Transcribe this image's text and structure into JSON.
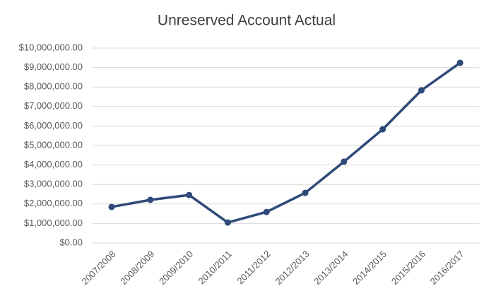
{
  "chart_data": {
    "type": "line",
    "title": "Unreserved Account Actual",
    "categories": [
      "2007/2008",
      "2008/2009",
      "2009/2010",
      "2010/2011",
      "2011/2012",
      "2012/2013",
      "2013/2014",
      "2014/2015",
      "2015/2016",
      "2016/2017"
    ],
    "values": [
      1850000,
      2210000,
      2460000,
      1050000,
      1590000,
      2570000,
      4170000,
      5830000,
      7830000,
      9240000
    ],
    "color": "#2e4a78",
    "ylim": [
      0,
      10000000
    ],
    "yticks": [
      {
        "value": 0,
        "label": "$0.00"
      },
      {
        "value": 1000000,
        "label": "$1,000,000.00"
      },
      {
        "value": 2000000,
        "label": "$2,000,000.00"
      },
      {
        "value": 3000000,
        "label": "$3,000,000.00"
      },
      {
        "value": 4000000,
        "label": "$4,000,000.00"
      },
      {
        "value": 5000000,
        "label": "$5,000,000.00"
      },
      {
        "value": 6000000,
        "label": "$6,000,000.00"
      },
      {
        "value": 7000000,
        "label": "$7,000,000.00"
      },
      {
        "value": 8000000,
        "label": "$8,000,000.00"
      },
      {
        "value": 9000000,
        "label": "$9,000,000.00"
      },
      {
        "value": 10000000,
        "label": "$10,000,000.00"
      }
    ],
    "grid": true
  }
}
